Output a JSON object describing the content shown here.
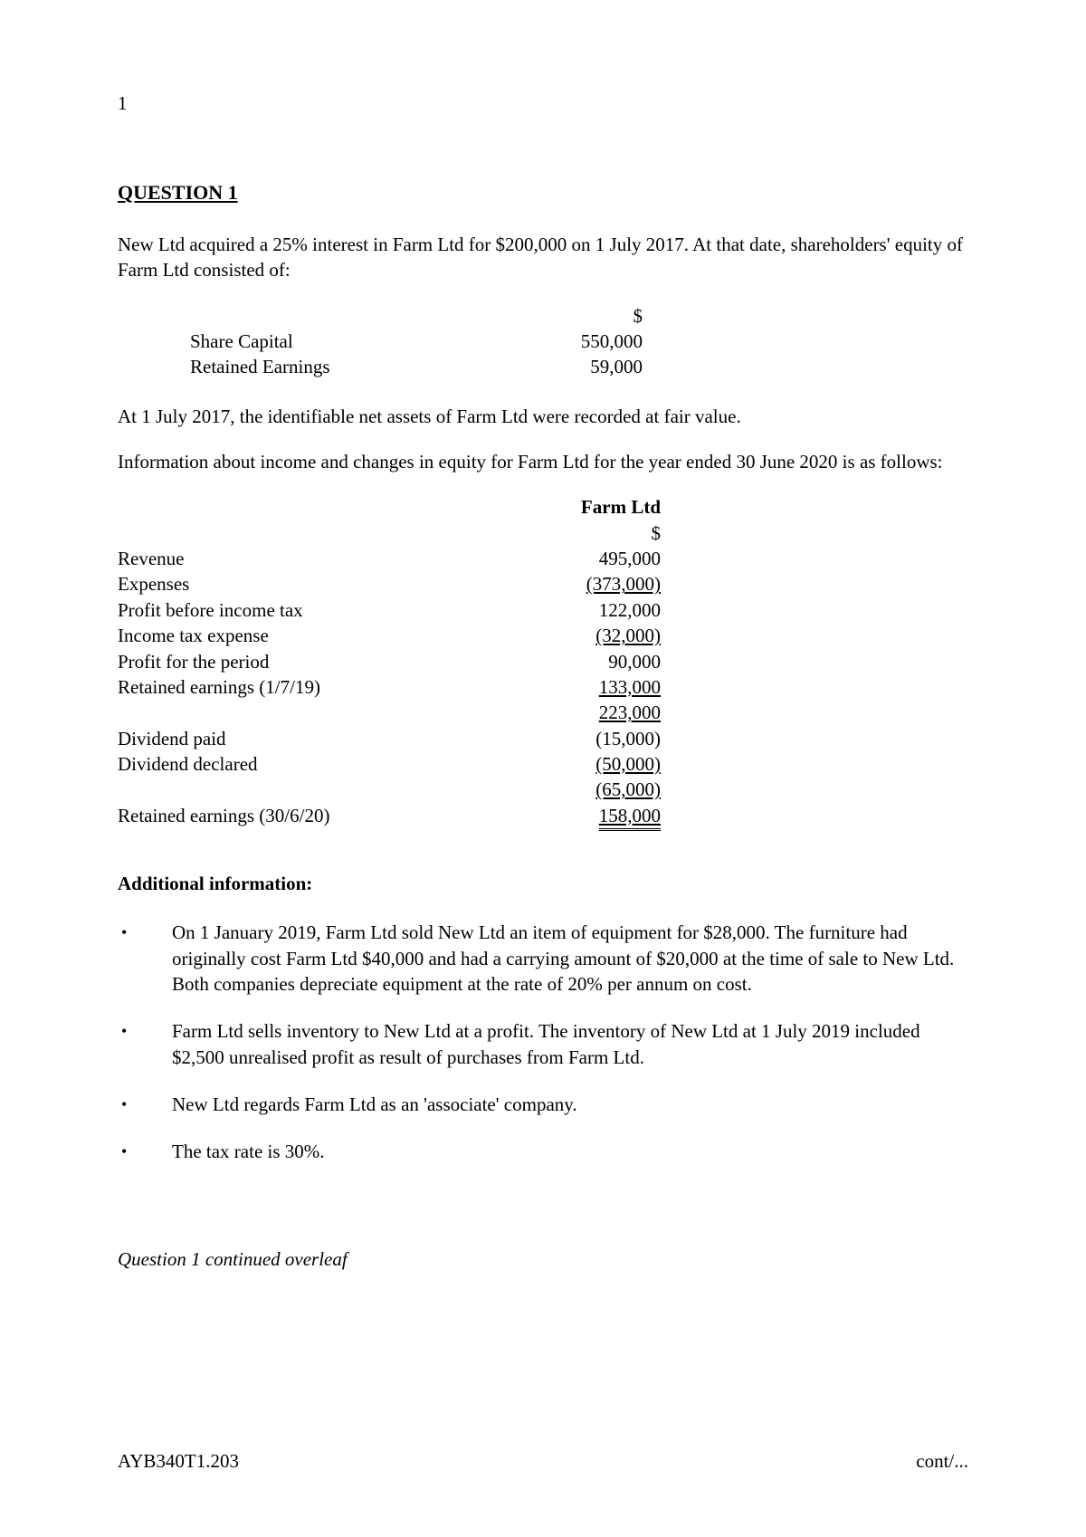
{
  "page_number": "1",
  "heading": "QUESTION 1",
  "intro_para": "New Ltd acquired a 25% interest in Farm Ltd for $200,000 on 1 July 2017.  At that date, shareholders' equity of Farm Ltd consisted of:",
  "equity_table": {
    "currency": "$",
    "rows": [
      {
        "label": "Share Capital",
        "value": "550,000"
      },
      {
        "label": "Retained Earnings",
        "value": "59,000"
      }
    ]
  },
  "para_fair_value": "At 1 July 2017, the identifiable net assets of Farm Ltd were recorded at fair value.",
  "para_income_intro": "Information about income and changes in equity for Farm Ltd for the year ended 30 June 2020 is as follows:",
  "income_table": {
    "header": "Farm Ltd",
    "currency": "$",
    "rows": [
      {
        "label": "Revenue",
        "value": "495,000",
        "neg": false,
        "underline": "none"
      },
      {
        "label": "Expenses",
        "value": "(373,000)",
        "neg": true,
        "underline": "single"
      },
      {
        "label": "Profit before income tax",
        "value": "122,000",
        "neg": false,
        "underline": "none"
      },
      {
        "label": "Income tax expense",
        "value": "(32,000)",
        "neg": true,
        "underline": "single"
      },
      {
        "label": "Profit for the period",
        "value": "90,000",
        "neg": false,
        "underline": "none"
      },
      {
        "label": "Retained earnings (1/7/19)",
        "value": "133,000",
        "neg": false,
        "underline": "single"
      },
      {
        "label": "",
        "value": "223,000",
        "neg": false,
        "underline": "single"
      },
      {
        "label": "Dividend paid",
        "value": "(15,000)",
        "neg": true,
        "underline": "none"
      },
      {
        "label": "Dividend declared",
        "value": "(50,000)",
        "neg": true,
        "underline": "single"
      },
      {
        "label": "",
        "value": "(65,000)",
        "neg": true,
        "underline": "single"
      },
      {
        "label": "Retained earnings (30/6/20)",
        "value": "158,000",
        "neg": false,
        "underline": "double"
      }
    ]
  },
  "additional_heading": "Additional information:",
  "bullets": [
    "On 1 January 2019, Farm Ltd sold New Ltd an item of equipment for $28,000.  The furniture had originally cost Farm Ltd $40,000 and had a carrying amount of $20,000 at the time of sale to New Ltd.  Both companies depreciate equipment at the rate of 20% per annum on cost.",
    "Farm Ltd sells inventory to New Ltd at a profit.  The inventory of New Ltd at 1 July 2019 included $2,500 unrealised profit as result of purchases from Farm Ltd.",
    "New Ltd regards Farm Ltd as an 'associate' company.",
    "The tax rate is 30%."
  ],
  "continued_text": "Question 1 continued overleaf",
  "footer_left": "AYB340T1.203",
  "footer_right": "cont/..."
}
